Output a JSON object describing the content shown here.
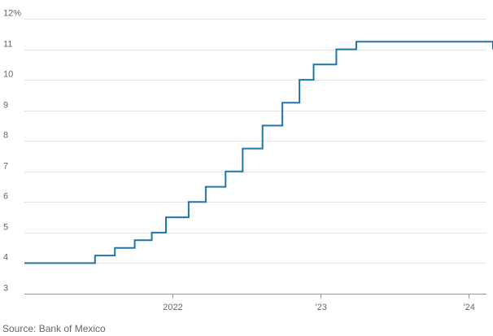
{
  "chart_data": {
    "type": "line",
    "step": true,
    "title": "",
    "xlabel": "",
    "ylabel": "",
    "ylim": [
      3,
      12
    ],
    "grid": true,
    "y_ticks": [
      {
        "value": 3,
        "label": "3"
      },
      {
        "value": 4,
        "label": "4"
      },
      {
        "value": 5,
        "label": "5"
      },
      {
        "value": 6,
        "label": "6"
      },
      {
        "value": 7,
        "label": "7"
      },
      {
        "value": 8,
        "label": "8"
      },
      {
        "value": 9,
        "label": "9"
      },
      {
        "value": 10,
        "label": "10"
      },
      {
        "value": 11,
        "label": "11"
      },
      {
        "value": 12,
        "label": "12%"
      }
    ],
    "x_ticks": [
      {
        "date": "2022-01-01",
        "label": "2022"
      },
      {
        "date": "2023-01-01",
        "label": "’23"
      },
      {
        "date": "2024-01-01",
        "label": "’24"
      }
    ],
    "xlim": [
      "2021-01-01",
      "2024-03-01"
    ],
    "series": [
      {
        "color": "#1f77a8",
        "points": [
          {
            "date": "2021-01-01",
            "value": 4.0
          },
          {
            "date": "2021-06-24",
            "value": 4.25
          },
          {
            "date": "2021-08-12",
            "value": 4.5
          },
          {
            "date": "2021-09-30",
            "value": 4.75
          },
          {
            "date": "2021-11-11",
            "value": 5.0
          },
          {
            "date": "2021-12-16",
            "value": 5.5
          },
          {
            "date": "2022-02-10",
            "value": 6.0
          },
          {
            "date": "2022-03-24",
            "value": 6.5
          },
          {
            "date": "2022-05-12",
            "value": 7.0
          },
          {
            "date": "2022-06-23",
            "value": 7.75
          },
          {
            "date": "2022-08-11",
            "value": 8.5
          },
          {
            "date": "2022-09-29",
            "value": 9.25
          },
          {
            "date": "2022-11-10",
            "value": 10.0
          },
          {
            "date": "2022-12-15",
            "value": 10.5
          },
          {
            "date": "2023-02-09",
            "value": 11.0
          },
          {
            "date": "2023-03-30",
            "value": 11.25
          },
          {
            "date": "2024-02-29",
            "value": 11.25
          },
          {
            "date": "2024-03-01",
            "value": 11.0
          }
        ]
      }
    ]
  },
  "source": "Source: Bank of Mexico"
}
